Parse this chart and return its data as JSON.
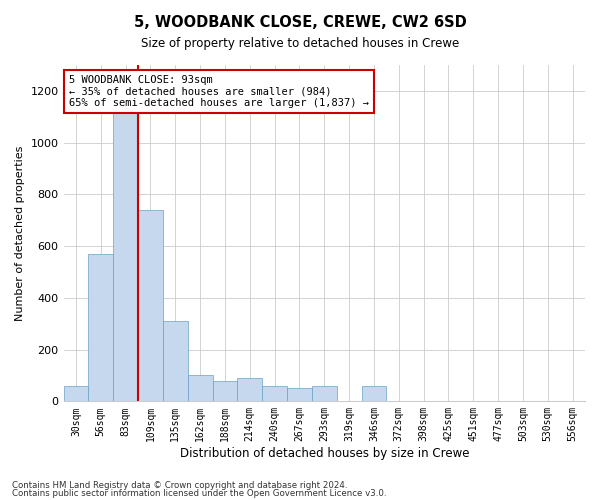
{
  "title": "5, WOODBANK CLOSE, CREWE, CW2 6SD",
  "subtitle": "Size of property relative to detached houses in Crewe",
  "xlabel": "Distribution of detached houses by size in Crewe",
  "ylabel": "Number of detached properties",
  "bin_labels": [
    "30sqm",
    "56sqm",
    "83sqm",
    "109sqm",
    "135sqm",
    "162sqm",
    "188sqm",
    "214sqm",
    "240sqm",
    "267sqm",
    "293sqm",
    "319sqm",
    "346sqm",
    "372sqm",
    "398sqm",
    "425sqm",
    "451sqm",
    "477sqm",
    "503sqm",
    "530sqm",
    "556sqm"
  ],
  "bar_values": [
    60,
    570,
    1200,
    740,
    310,
    100,
    80,
    90,
    60,
    50,
    60,
    0,
    60,
    0,
    0,
    0,
    0,
    0,
    0,
    0,
    0
  ],
  "bar_color": "#c5d8ee",
  "bar_edge_color": "#6a9fc8",
  "property_bin_index": 2,
  "line_color": "#cc0000",
  "annotation_text": "5 WOODBANK CLOSE: 93sqm\n← 35% of detached houses are smaller (984)\n65% of semi-detached houses are larger (1,837) →",
  "annotation_box_color": "#ffffff",
  "annotation_box_edge": "#cc0000",
  "ylim": [
    0,
    1300
  ],
  "yticks": [
    0,
    200,
    400,
    600,
    800,
    1000,
    1200
  ],
  "footer1": "Contains HM Land Registry data © Crown copyright and database right 2024.",
  "footer2": "Contains public sector information licensed under the Open Government Licence v3.0."
}
